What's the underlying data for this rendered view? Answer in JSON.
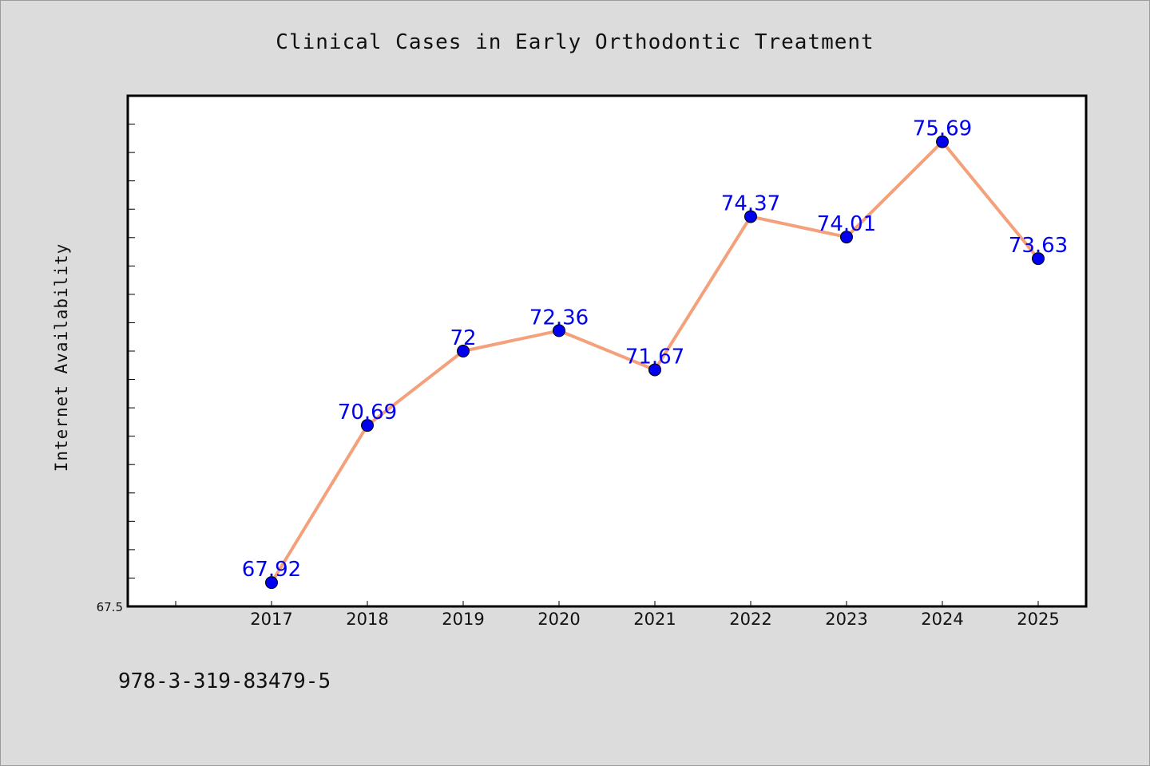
{
  "chart_data": {
    "type": "line",
    "title": "Clinical Cases in Early Orthodontic Treatment",
    "xlabel": "",
    "ylabel": "Internet Availability",
    "categories": [
      "2017",
      "2018",
      "2019",
      "2020",
      "2021",
      "2022",
      "2023",
      "2024",
      "2025"
    ],
    "series": [
      {
        "values": [
          67.92,
          70.69,
          72,
          72.36,
          71.67,
          74.37,
          74.01,
          75.69,
          73.63
        ],
        "data_labels": [
          "67.92",
          "70.69",
          "72",
          "72.36",
          "71.67",
          "74.37",
          "74.01",
          "75.69",
          "73.63"
        ],
        "line_color": "#f4a07a",
        "marker_color": "#0000ee"
      }
    ],
    "ylim": [
      67.5,
      76.5
    ],
    "y_tick_labels": [
      "67.5"
    ],
    "grid": false,
    "legend": "none"
  },
  "footer": {
    "text": "978-3-319-83479-5"
  },
  "colors": {
    "background": "#dcdcdc",
    "plot_background": "#ffffff",
    "axis": "#000000",
    "line": "#f4a07a",
    "marker": "#0000ee",
    "data_label": "#0000ee"
  }
}
